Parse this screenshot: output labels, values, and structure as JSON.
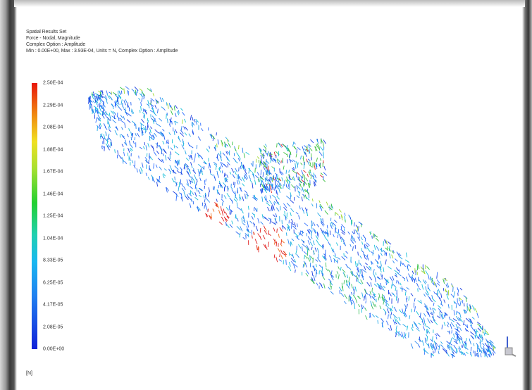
{
  "header": {
    "lines": [
      "Spatial Results Set",
      "Force - Nodal, Magnitude",
      "Complex Option : Amplitude",
      "Min : 0.00E+00, Max : 3.93E-04, Units = N, Complex Option : Amplitude"
    ]
  },
  "legend": {
    "labels": [
      "2.50E-04",
      "2.29E-04",
      "2.08E-04",
      "1.88E-04",
      "1.67E-04",
      "1.46E-04",
      "1.25E-04",
      "1.04E-04",
      "8.33E-05",
      "6.25E-05",
      "4.17E-05",
      "2.08E-05",
      "0.00E+00"
    ],
    "unit": "[N]"
  }
}
